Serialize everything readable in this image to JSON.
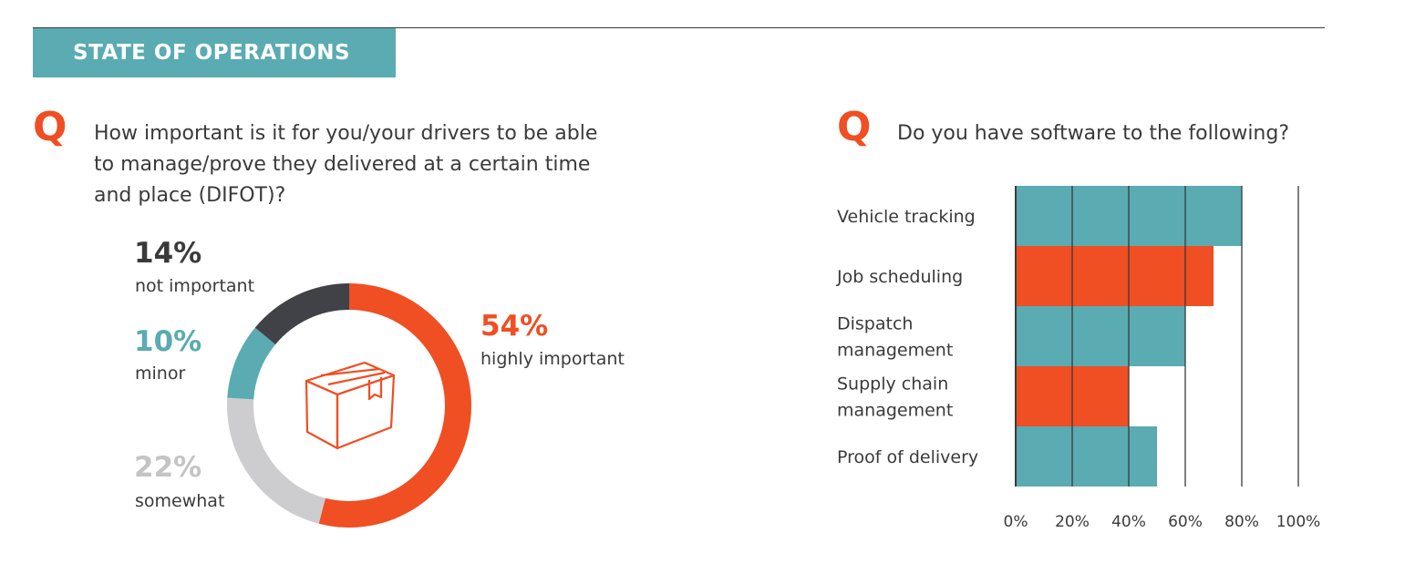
{
  "header": {
    "section_title": "STATE OF OPERATIONS"
  },
  "q_glyph": "Q",
  "colors": {
    "orange": "#f04e23",
    "teal": "#5aabb2",
    "dark": "#414247",
    "light_gray": "#cdcdcf",
    "text": "#3a3a3a"
  },
  "left_question": {
    "lines": [
      "How important is it for you/your drivers to be able",
      "to manage/prove they delivered at a certain time",
      "and place (DIFOT)?"
    ]
  },
  "right_question": {
    "lines": [
      "Do you have software to the following?"
    ]
  },
  "center_icon": "box-icon",
  "chart_data": [
    {
      "type": "pie",
      "donut": true,
      "title": "",
      "slices": [
        {
          "label": "highly important",
          "value": 54,
          "value_label": "54%",
          "color": "#f04e23"
        },
        {
          "label": "somewhat",
          "value": 22,
          "value_label": "22%",
          "color": "#cdcdcf"
        },
        {
          "label": "minor",
          "value": 10,
          "value_label": "10%",
          "color": "#5aabb2"
        },
        {
          "label": "not important",
          "value": 14,
          "value_label": "14%",
          "color": "#414247"
        }
      ]
    },
    {
      "type": "bar",
      "orientation": "horizontal",
      "title": "",
      "xlabel": "",
      "ylabel": "",
      "categories": [
        [
          "Vehicle tracking"
        ],
        [
          "Job scheduling"
        ],
        [
          "Dispatch",
          "management"
        ],
        [
          "Supply chain",
          "management"
        ],
        [
          "Proof of delivery"
        ]
      ],
      "values": [
        80,
        70,
        60,
        40,
        50
      ],
      "colors": [
        "#5aabb2",
        "#f04e23",
        "#5aabb2",
        "#f04e23",
        "#5aabb2"
      ],
      "xlim": [
        0,
        100
      ],
      "ticks": [
        0,
        20,
        40,
        60,
        80,
        100
      ],
      "tick_labels": [
        "0%",
        "20%",
        "40%",
        "60%",
        "80%",
        "100%"
      ],
      "grid": true
    }
  ]
}
